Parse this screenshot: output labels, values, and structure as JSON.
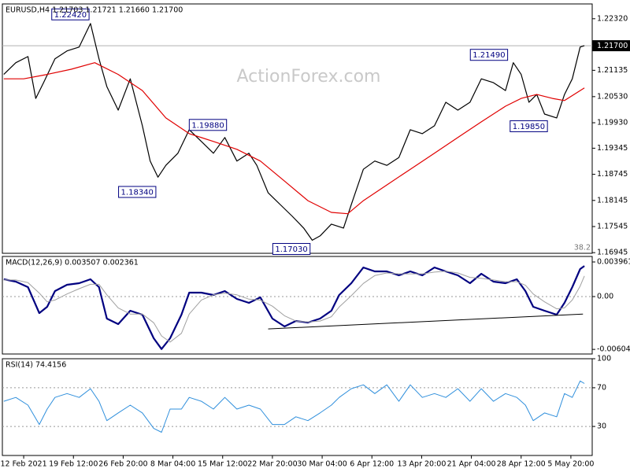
{
  "chart_data": [
    {
      "type": "line",
      "title": "EURUSD,H4  1.21703 1.21721 1.21660 1.21700",
      "watermark": "ActionForex.com",
      "xlim": [
        -3,
        80
      ],
      "x": [
        -2.8,
        -1.1,
        0.6,
        1.7,
        2.8,
        4.4,
        6.1,
        7.8,
        9.4,
        10.6,
        11.7,
        13.3,
        15,
        16.7,
        17.8,
        18.9,
        20,
        21.7,
        23.3,
        25,
        26.7,
        28.3,
        30,
        31.7,
        32.8,
        34.4,
        36.1,
        37.8,
        39.4,
        40.6,
        41.7,
        43.3,
        45,
        46.1,
        47.8,
        49.4,
        51.1,
        52.8,
        54.4,
        56.1,
        57.8,
        59.4,
        61.1,
        62.8,
        64.4,
        66.1,
        67.8,
        68.9,
        70,
        71.1,
        72.2,
        73.3,
        75,
        76.1,
        77.2,
        78.3,
        78.9
      ],
      "ylim": [
        1.1693,
        1.2266
      ],
      "yticks": [
        {
          "value": 1.2232,
          "label": "1.22320"
        },
        {
          "value": 1.21135,
          "label": "1.21135"
        },
        {
          "value": 1.2053,
          "label": "1.20530"
        },
        {
          "value": 1.1993,
          "label": "1.19930"
        },
        {
          "value": 1.19345,
          "label": "1.19345"
        },
        {
          "value": 1.18745,
          "label": "1.18745"
        },
        {
          "value": 1.18145,
          "label": "1.18145"
        },
        {
          "value": 1.17545,
          "label": "1.17545"
        },
        {
          "value": 1.16945,
          "label": "1.16945"
        }
      ],
      "series": [
        {
          "color": "#000000",
          "line_width": 1.2,
          "values": [
            1.2104,
            1.2131,
            1.2145,
            1.2049,
            1.2085,
            1.214,
            1.2158,
            1.2167,
            1.2221,
            1.214,
            1.2076,
            1.2022,
            1.2094,
            1.1986,
            1.1905,
            1.1868,
            1.1895,
            1.1923,
            1.1977,
            1.195,
            1.1923,
            1.1959,
            1.1905,
            1.1923,
            1.1895,
            1.1832,
            1.1805,
            1.1778,
            1.1751,
            1.1723,
            1.1733,
            1.176,
            1.1751,
            1.1805,
            1.1886,
            1.1905,
            1.1895,
            1.1913,
            1.1977,
            1.1968,
            1.1986,
            1.204,
            1.2022,
            1.204,
            1.2094,
            1.2085,
            1.2067,
            1.2131,
            1.2104,
            1.204,
            1.2058,
            1.2013,
            1.2004,
            1.2058,
            1.2094,
            1.2167,
            1.217
          ]
        },
        {
          "color": "#e00000",
          "line_width": 1.2,
          "x": [
            -2.8,
            0,
            3.3,
            6.7,
            10,
            13.3,
            16.7,
            20,
            23.3,
            26.7,
            30,
            33.3,
            36.7,
            40,
            43.3,
            45.6,
            47.8,
            51.1,
            54.4,
            57.8,
            61.1,
            64.4,
            67.8,
            70,
            72.2,
            74.4,
            76.1,
            78.9
          ],
          "values": [
            1.2094,
            1.2094,
            1.2104,
            1.2116,
            1.2131,
            1.2104,
            1.2067,
            1.2004,
            1.1968,
            1.195,
            1.1932,
            1.1905,
            1.1859,
            1.1814,
            1.1787,
            1.1784,
            1.1814,
            1.185,
            1.1886,
            1.1923,
            1.1959,
            1.1995,
            1.2031,
            1.2049,
            1.2058,
            1.2049,
            1.2044,
            1.2073
          ]
        }
      ],
      "current_price": {
        "value": 1.217,
        "label": "1.21700"
      },
      "annotations": [
        {
          "x": 9.2,
          "value": 1.2242,
          "label": "1.22420",
          "side": "left"
        },
        {
          "x": 18.6,
          "value": 1.1834,
          "label": "1.18340",
          "side": "left"
        },
        {
          "x": 23.3,
          "value": 1.1988,
          "label": "1.19880",
          "side": "right"
        },
        {
          "x": 40.3,
          "value": 1.1703,
          "label": "1.17030",
          "side": "left"
        },
        {
          "x": 68.1,
          "value": 1.2149,
          "label": "1.21490",
          "side": "left"
        },
        {
          "x": 73.7,
          "value": 1.1985,
          "label": "1.19850",
          "side": "left"
        }
      ],
      "fib_level_label": "38.2"
    },
    {
      "type": "line",
      "title": "MACD(12,26,9) 0.003507 0.002361",
      "xlim": [
        -3,
        80
      ],
      "x": [
        -2.8,
        -1.1,
        0.6,
        2.2,
        3.3,
        4.4,
        6.1,
        7.8,
        9.4,
        10.6,
        11.7,
        13.3,
        15,
        16.7,
        18.3,
        19.4,
        20.6,
        22.2,
        23.3,
        25,
        26.7,
        28.3,
        30,
        31.7,
        33.3,
        35,
        36.7,
        38.3,
        40,
        41.7,
        43.3,
        44.4,
        46.1,
        47.8,
        49.4,
        51.1,
        52.8,
        54.4,
        56.1,
        57.8,
        59.4,
        61.1,
        62.8,
        64.4,
        66.1,
        67.8,
        69.4,
        70.6,
        71.7,
        73.3,
        75,
        76.1,
        77.2,
        78.3,
        78.9
      ],
      "ylim": [
        -0.00657,
        0.00459
      ],
      "yticks": [
        0.003961,
        {
          "value": 0,
          "label": "0.00"
        },
        -0.006043
      ],
      "levels": [
        0
      ],
      "series": [
        {
          "color": "#000080",
          "line_width": 2.2,
          "values": [
            0.00198,
            0.00171,
            0.00108,
            -0.00189,
            -0.00117,
            0.00063,
            0.00135,
            0.00153,
            0.00198,
            0.00108,
            -0.00252,
            -0.00315,
            -0.00162,
            -0.00207,
            -0.00477,
            -0.006,
            -0.00477,
            -0.00207,
            0.00045,
            0.00045,
            0.00018,
            0.00063,
            -0.00027,
            -0.00072,
            -9e-05,
            -0.00252,
            -0.00342,
            -0.00279,
            -0.00297,
            -0.00252,
            -0.00162,
            0.00018,
            0.00153,
            0.00333,
            0.00288,
            0.00288,
            0.00243,
            0.00288,
            0.00243,
            0.00333,
            0.00288,
            0.00243,
            0.00153,
            0.00261,
            0.00171,
            0.00153,
            0.00198,
            0.00063,
            -0.00117,
            -0.00162,
            -0.00207,
            -0.00072,
            0.00108,
            0.00315,
            0.0035
          ]
        },
        {
          "color": "#a0a0a0",
          "line_width": 1,
          "values": [
            0.0019,
            0.0019,
            0.0016,
            0.0004,
            -0.0006,
            -0.0004,
            0.0003,
            0.0009,
            0.0014,
            0.0014,
            0.0002,
            -0.0013,
            -0.002,
            -0.002,
            -0.003,
            -0.0045,
            -0.0052,
            -0.0042,
            -0.002,
            -0.0004,
            0.0002,
            0.0004,
            0.0002,
            -0.0003,
            -0.0004,
            -0.0011,
            -0.0022,
            -0.0028,
            -0.0029,
            -0.0028,
            -0.0023,
            -0.0012,
            0.0001,
            0.0015,
            0.0024,
            0.0027,
            0.0026,
            0.0026,
            0.0026,
            0.0028,
            0.0029,
            0.0027,
            0.0022,
            0.0021,
            0.0019,
            0.0017,
            0.0017,
            0.0013,
            0.0003,
            -0.0006,
            -0.0014,
            -0.0013,
            -0.0004,
            0.0012,
            0.002361
          ]
        }
      ],
      "trendline": {
        "x": [
          34.4,
          78.7
        ],
        "values": [
          -0.0037,
          -0.002
        ]
      }
    },
    {
      "type": "line",
      "title": "RSI(14) 74.4156",
      "xlim": [
        -3,
        80
      ],
      "x": [
        -2.8,
        -1.1,
        0.6,
        2.2,
        3.3,
        4.4,
        6.1,
        7.8,
        9.4,
        10.6,
        11.7,
        13.3,
        15,
        16.7,
        18.3,
        19.4,
        20.6,
        22.2,
        23.3,
        25,
        26.7,
        28.3,
        30,
        31.7,
        33.3,
        35,
        36.7,
        38.3,
        40,
        41.7,
        43.3,
        44.4,
        46.1,
        47.8,
        49.4,
        51.1,
        52.8,
        54.4,
        56.1,
        57.8,
        59.4,
        61.1,
        62.8,
        64.4,
        66.1,
        67.8,
        69.4,
        70.6,
        71.7,
        73.3,
        75,
        76.1,
        77.2,
        78.3,
        78.9
      ],
      "ylim": [
        0,
        100
      ],
      "yticks": [
        100,
        70,
        30
      ],
      "levels": [
        70,
        30
      ],
      "series": [
        {
          "color": "#2f8fdc",
          "line_width": 1,
          "values": [
            56,
            60,
            52,
            32,
            48,
            60,
            64,
            60,
            69,
            56,
            36,
            44,
            52,
            44,
            28,
            24,
            48,
            48,
            60,
            56,
            48,
            60,
            48,
            52,
            48,
            32,
            32,
            40,
            36,
            44,
            52,
            60,
            69,
            73,
            64,
            73,
            56,
            73,
            60,
            64,
            60,
            69,
            56,
            69,
            56,
            64,
            60,
            52,
            36,
            44,
            40,
            64,
            60,
            77,
            74.4156
          ]
        }
      ],
      "xticks": [
        {
          "value": 0,
          "label": "12 Feb 2021"
        },
        {
          "value": 7,
          "label": "19 Feb 12:00"
        },
        {
          "value": 14,
          "label": "26 Feb 20:00"
        },
        {
          "value": 21,
          "label": "8 Mar 04:00"
        },
        {
          "value": 28,
          "label": "15 Mar 12:00"
        },
        {
          "value": 35,
          "label": "22 Mar 20:00"
        },
        {
          "value": 42,
          "label": "30 Mar 04:00"
        },
        {
          "value": 49,
          "label": "6 Apr 12:00"
        },
        {
          "value": 56,
          "label": "13 Apr 20:00"
        },
        {
          "value": 63,
          "label": "21 Apr 04:00"
        },
        {
          "value": 70,
          "label": "28 Apr 12:00"
        },
        {
          "value": 77,
          "label": "5 May 20:00"
        }
      ]
    }
  ]
}
